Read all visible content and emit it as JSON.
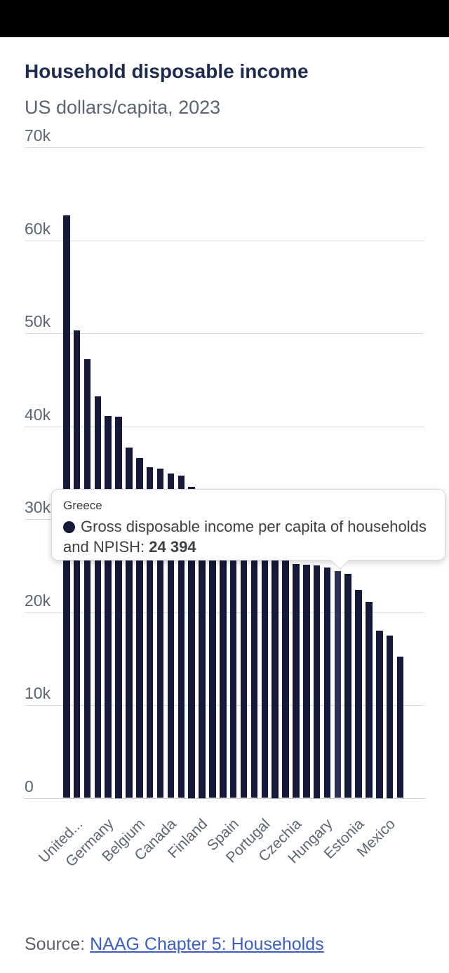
{
  "header": {
    "title": "Household disposable income",
    "subtitle": "US dollars/capita, 2023"
  },
  "chart_data": {
    "type": "bar",
    "title": "Household disposable income",
    "subtitle": "US dollars/capita, 2023",
    "ylabel": "US dollars/capita",
    "year": "2023",
    "ylim": [
      0,
      70000
    ],
    "grid": true,
    "bar_color": "#141a38",
    "highlight_color": "#2b3159",
    "highlighted_index": 26,
    "categories": [
      "United...",
      "",
      "",
      "Germany",
      "",
      "",
      "Belgium",
      "",
      "",
      "Canada",
      "",
      "",
      "Finland",
      "",
      "",
      "Spain",
      "",
      "",
      "Portugal",
      "",
      "",
      "Czechia",
      "",
      "",
      "Hungary",
      "",
      "Greece",
      "Estonia",
      "",
      "",
      "Mexico",
      "",
      ""
    ],
    "values": [
      62700,
      50300,
      47200,
      43200,
      41100,
      41000,
      37700,
      36600,
      35600,
      35400,
      34900,
      34700,
      33500,
      32500,
      31600,
      30700,
      29900,
      29100,
      28400,
      27700,
      27000,
      26300,
      25200,
      25100,
      25000,
      24800,
      24394,
      24100,
      22400,
      21100,
      18000,
      17500,
      15200
    ],
    "y_ticks": [
      {
        "value": 0,
        "label": "0"
      },
      {
        "value": 10000,
        "label": "10k"
      },
      {
        "value": 20000,
        "label": "20k"
      },
      {
        "value": 30000,
        "label": "30k"
      },
      {
        "value": 40000,
        "label": "40k"
      },
      {
        "value": 50000,
        "label": "50k"
      },
      {
        "value": 60000,
        "label": "60k"
      },
      {
        "value": 70000,
        "label": "70k"
      }
    ],
    "x_ticks": [
      {
        "index": 0,
        "label": "United..."
      },
      {
        "index": 3,
        "label": "Germany"
      },
      {
        "index": 6,
        "label": "Belgium"
      },
      {
        "index": 9,
        "label": "Canada"
      },
      {
        "index": 12,
        "label": "Finland"
      },
      {
        "index": 15,
        "label": "Spain"
      },
      {
        "index": 18,
        "label": "Portugal"
      },
      {
        "index": 21,
        "label": "Czechia"
      },
      {
        "index": 24,
        "label": "Hungary"
      },
      {
        "index": 27,
        "label": "Estonia"
      },
      {
        "index": 30,
        "label": "Mexico"
      }
    ]
  },
  "tooltip": {
    "country": "Greece",
    "label": "Gross disposable income per capita of households and NPISH:",
    "value": "24 394",
    "marker_color": "#141a38"
  },
  "source": {
    "prefix": "Source: ",
    "link_text": "NAAG Chapter 5: Households"
  }
}
